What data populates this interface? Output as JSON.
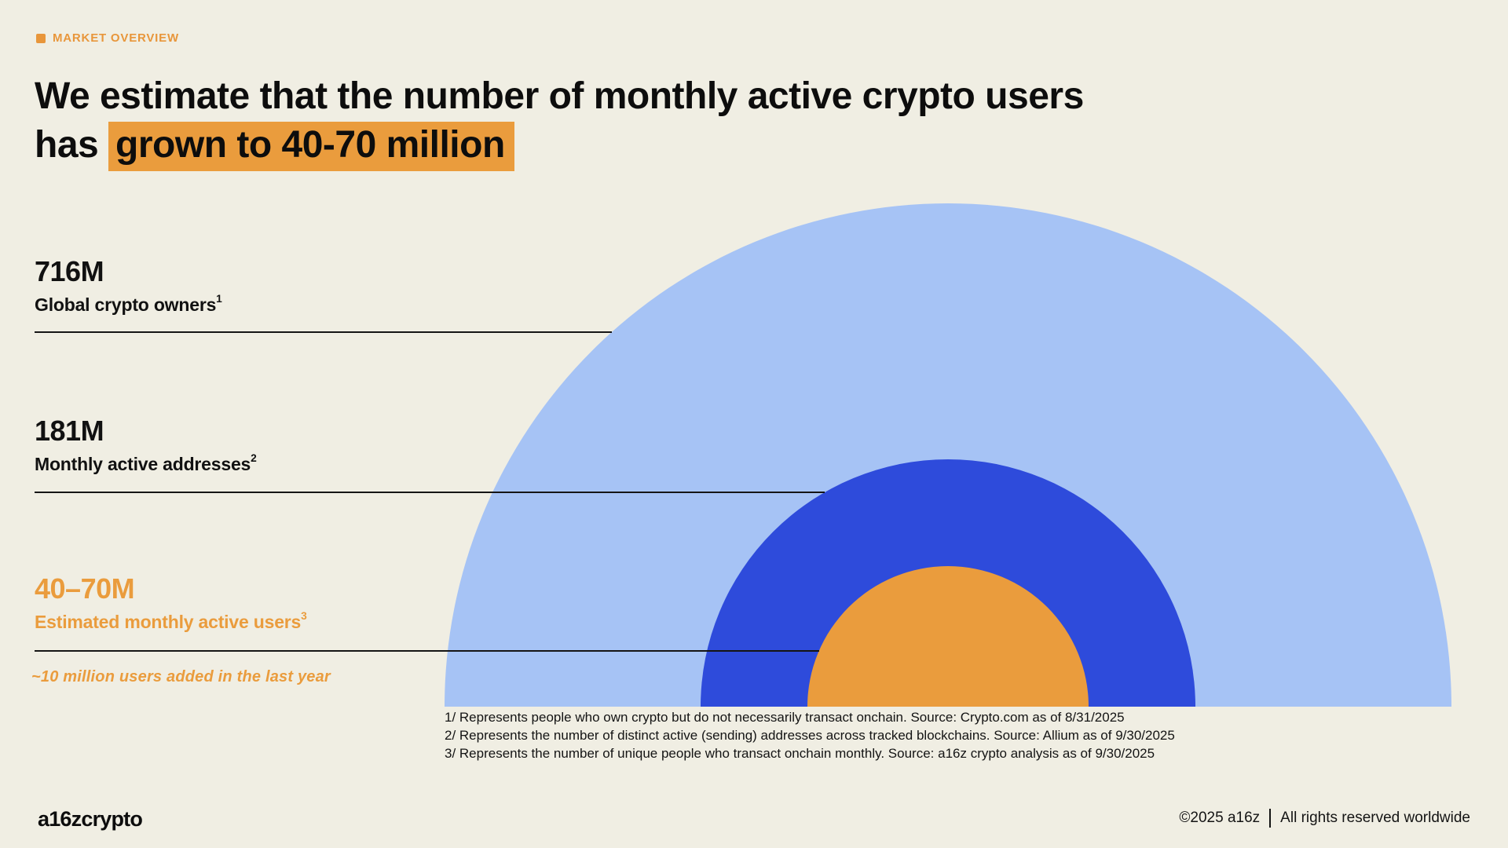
{
  "header": {
    "eyebrow": "MARKET OVERVIEW",
    "title_line1": "We estimate that the number of monthly active crypto users",
    "title_line2_prefix": "has ",
    "title_line2_highlight": "grown to 40-70 million"
  },
  "colors": {
    "background": "#f0eee3",
    "accent_orange": "#ea9c3d",
    "light_blue": "#a6c3f5",
    "dark_blue": "#2e4bdb",
    "text": "#111111"
  },
  "chart_data": {
    "type": "pie",
    "variant": "nested-proportional-semicircles",
    "unit": "millions of users",
    "title": "We estimate that the number of monthly active crypto users has grown to 40-70 million",
    "legend_position": "left",
    "series": [
      {
        "label": "Global crypto owners",
        "footnote_marker": "1",
        "value_label": "716M",
        "value": 716,
        "color": "#a6c3f5"
      },
      {
        "label": "Monthly active addresses",
        "footnote_marker": "2",
        "value_label": "181M",
        "value": 181,
        "color": "#2e4bdb"
      },
      {
        "label": "Estimated monthly active users",
        "footnote_marker": "3",
        "value_label": "40–70M",
        "value_min": 40,
        "value_max": 70,
        "color": "#ea9c3d"
      }
    ],
    "annotation": "~10 million users added in the last year"
  },
  "footnotes": [
    "1/ Represents people who own crypto but do not necessarily transact onchain. Source: Crypto.com as of 8/31/2025",
    "2/ Represents the number of distinct active (sending) addresses across tracked blockchains. Source: Allium as of 9/30/2025",
    "3/ Represents the number of unique people who transact onchain monthly. Source: a16z crypto analysis as of 9/30/2025"
  ],
  "footer": {
    "logo": "a16zcrypto",
    "copyright": "©2025 a16z",
    "rights": "All rights reserved worldwide"
  }
}
